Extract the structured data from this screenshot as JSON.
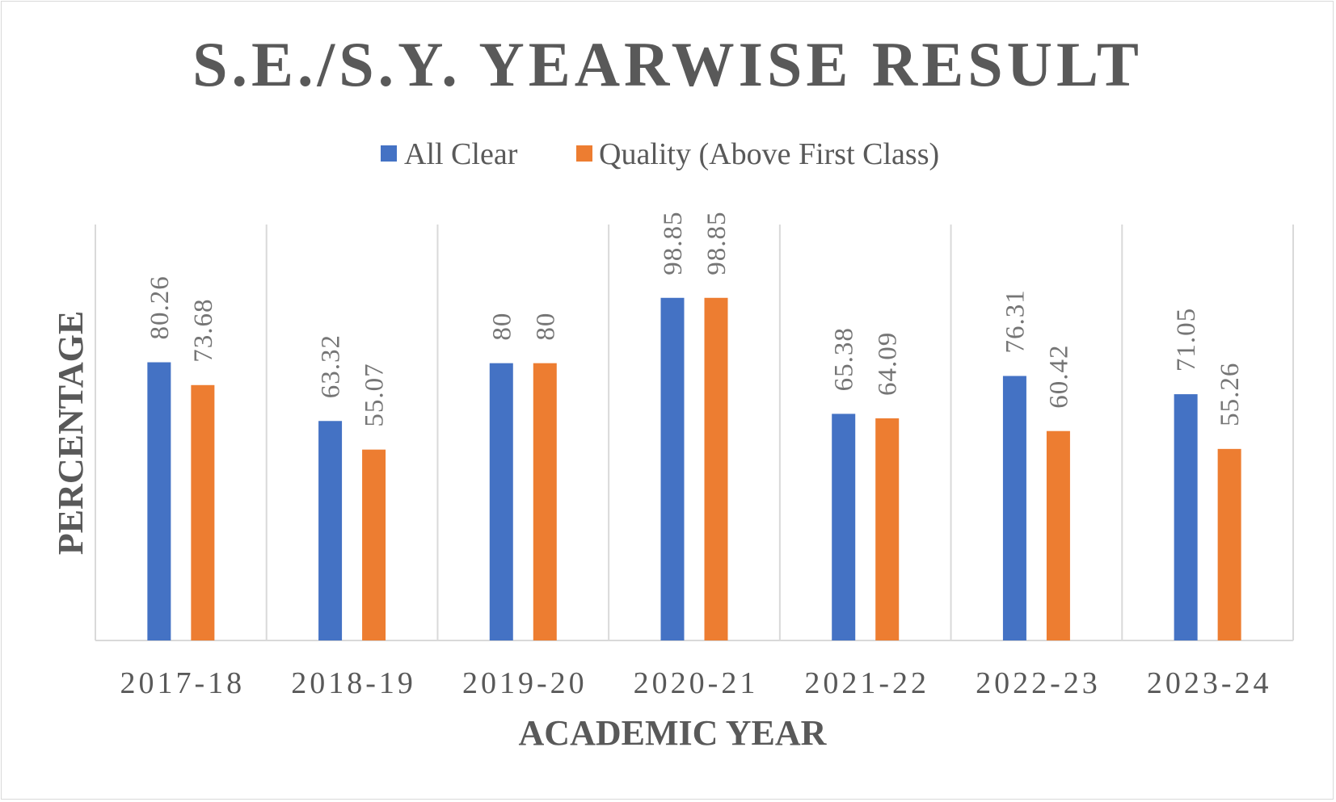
{
  "chart_data": {
    "type": "bar",
    "title": "S.E./S.Y. YEARWISE RESULT",
    "xlabel": "ACADEMIC YEAR",
    "ylabel": "PERCENTAGE",
    "categories": [
      "2017-18",
      "2018-19",
      "2019-20",
      "2020-21",
      "2021-22",
      "2022-23",
      "2023-24"
    ],
    "series": [
      {
        "name": "All Clear",
        "color": "#4472C4",
        "values": [
          80.26,
          63.32,
          80,
          98.85,
          65.38,
          76.31,
          71.05
        ],
        "labels": [
          "80.26",
          "63.32",
          "80",
          "98.85",
          "65.38",
          "76.31",
          "71.05"
        ]
      },
      {
        "name": "Quality (Above First Class)",
        "color": "#ED7D31",
        "values": [
          73.68,
          55.07,
          80,
          98.85,
          64.09,
          60.42,
          55.26
        ],
        "labels": [
          "73.68",
          "55.07",
          "80",
          "98.85",
          "64.09",
          "60.42",
          "55.26"
        ]
      }
    ],
    "ylim": [
      0,
      120
    ],
    "legend_position": "top",
    "grid": "vertical category separators",
    "y_axis_tick_labels_shown": false
  }
}
